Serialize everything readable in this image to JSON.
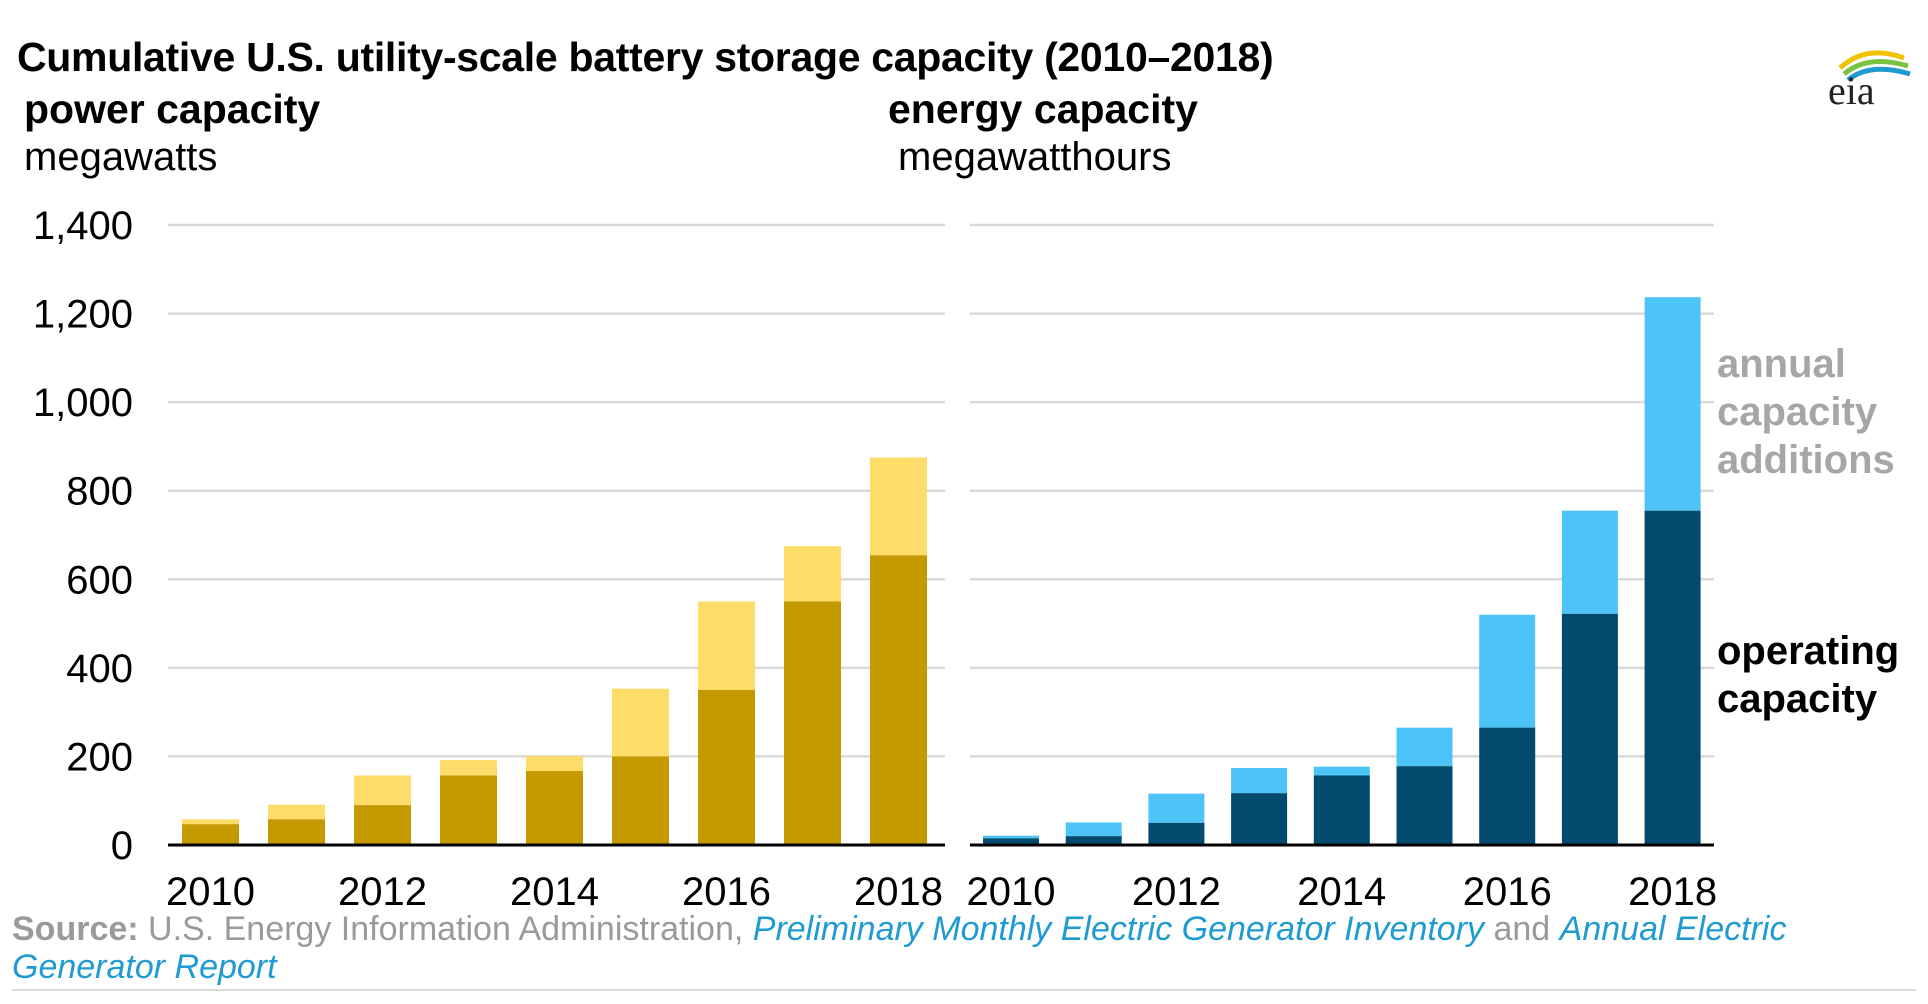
{
  "title": "Cumulative U.S. utility-scale battery storage capacity (2010–2018)",
  "logo_text": "eia",
  "legend": {
    "additions": "annual capacity additions",
    "operating": "operating capacity"
  },
  "source": {
    "label": "Source:",
    "text": "U.S. Energy Information Administration,",
    "link1": "Preliminary Monthly Electric Generator Inventory",
    "and": "and",
    "link2": "Annual Electric Generator Report"
  },
  "colors": {
    "power_operating": "#c49a00",
    "power_additions": "#fddc69",
    "energy_operating": "#034b6e",
    "energy_additions": "#4cc4f8",
    "grid": "#d9d9d9",
    "axis": "#000000"
  },
  "chart_data": [
    {
      "type": "bar",
      "stacked": true,
      "title": "power capacity",
      "ylabel": "megawatts",
      "ylim": [
        0,
        1400
      ],
      "yticks": [
        "0",
        "200",
        "400",
        "600",
        "800",
        "1,000",
        "1,200",
        "1,400"
      ],
      "categories": [
        "2010",
        "2011",
        "2012",
        "2013",
        "2014",
        "2015",
        "2016",
        "2017",
        "2018"
      ],
      "xtick_labels": [
        "2010",
        "",
        "2012",
        "",
        "2014",
        "",
        "2016",
        "",
        "2018"
      ],
      "series": [
        {
          "name": "operating capacity",
          "values": [
            47,
            58,
            90,
            157,
            167,
            200,
            350,
            550,
            654
          ]
        },
        {
          "name": "annual capacity additions",
          "values": [
            11,
            33,
            67,
            35,
            34,
            153,
            200,
            125,
            221
          ]
        }
      ]
    },
    {
      "type": "bar",
      "stacked": true,
      "title": "energy capacity",
      "ylabel": "megawatthours",
      "ylim": [
        0,
        1400
      ],
      "categories": [
        "2010",
        "2011",
        "2012",
        "2013",
        "2014",
        "2015",
        "2016",
        "2017",
        "2018"
      ],
      "xtick_labels": [
        "2010",
        "",
        "2012",
        "",
        "2014",
        "",
        "2016",
        "",
        "2018"
      ],
      "series": [
        {
          "name": "operating capacity",
          "values": [
            15,
            20,
            50,
            117,
            157,
            178,
            265,
            522,
            755
          ]
        },
        {
          "name": "annual capacity additions",
          "values": [
            6,
            31,
            66,
            57,
            20,
            87,
            255,
            233,
            482
          ]
        }
      ]
    }
  ]
}
